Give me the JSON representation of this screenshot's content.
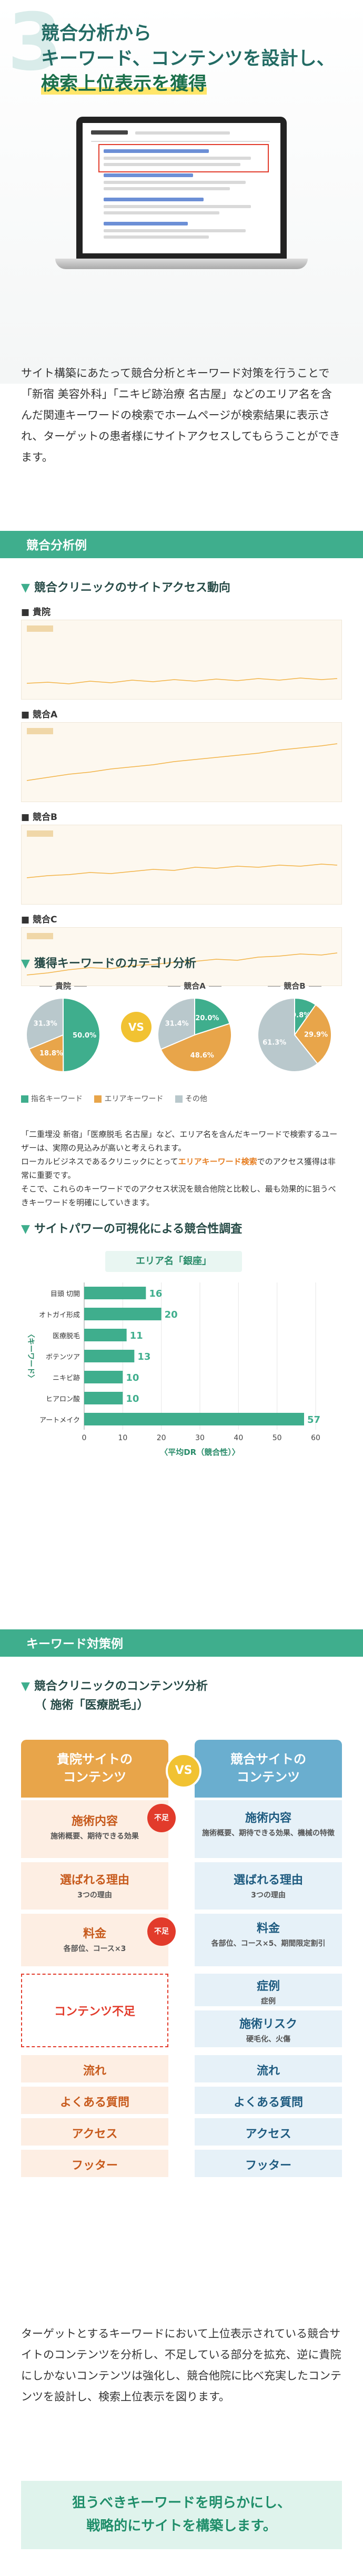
{
  "hero": {
    "number": "3",
    "title_line1": "競合分析から",
    "title_line2": "キーワード、コンテンツを設計し、",
    "title_line3": "検索上位表示を獲得"
  },
  "intro": "サイト構築にあたって競合分析とキーワード対策を行うことで「新宿 美容外科」「ニキビ跡治療 名古屋」などのエリア名を含んだ関連キーワードの検索でホームページが検索結果に表示され、ターゲットの患者様にサイトアクセスしてもらうことができます。",
  "section1": {
    "band": "競合分析例",
    "subhead": "競合クリニックのサイトアクセス動向",
    "graphs": [
      {
        "label": "貴院"
      },
      {
        "label": "競合A"
      },
      {
        "label": "競合B"
      },
      {
        "label": "競合C"
      }
    ]
  },
  "pie_section": {
    "subhead": "獲得キーワードのカテゴリ分析",
    "vs": "VS",
    "pies": [
      {
        "label": "貴院",
        "brand": "50.0%",
        "area": "18.8%",
        "other": "31.3%"
      },
      {
        "label": "競合A",
        "brand": "20.0%",
        "area": "48.6%",
        "other": "31.4%"
      },
      {
        "label": "競合B",
        "brand": "9.8%",
        "area": "29.9%",
        "other": "61.3%"
      }
    ],
    "legend": [
      "指名キーワード",
      "エリアキーワード",
      "その他"
    ],
    "colors": {
      "brand": "#3fae8d",
      "area": "#e8a54a",
      "other": "#b9c8cc"
    }
  },
  "note": {
    "p1": "「二重埋没 新宿」「医療脱毛 名古屋」など、エリア名を含んだキーワードで検索するユーザーは、実際の見込みが高いと考えられます。",
    "p2a": "ローカルビジネスであるクリニックにとって",
    "p2b": "エリアキーワード検索",
    "p2c": "でのアクセス獲得は非常に重要です。",
    "p3": "そこで、これらのキーワードでのアクセス状況を競合他院と比較し、最も効果的に狙うべきキーワードを明確にしていきます。"
  },
  "bar_section": {
    "subhead": "サイトパワーの可視化による競合性調査",
    "area_tag": "エリア名「銀座」",
    "y_axis_label": "〈キーワード〉",
    "x_axis_label": "〈平均DR（競合性）〉"
  },
  "chart_data": {
    "type": "bar",
    "orientation": "horizontal",
    "categories": [
      "目頭 切開",
      "オトガイ形成",
      "医療脱毛",
      "ボテンツア",
      "ニキビ跡",
      "ヒアロン酸",
      "アートメイク"
    ],
    "values": [
      16,
      20,
      11,
      13,
      10,
      10,
      57
    ],
    "xlim": [
      0,
      60
    ],
    "xticks": [
      0,
      10,
      20,
      30,
      40,
      50,
      60
    ],
    "color": "#3fae8d"
  },
  "section2": {
    "band": "キーワード対策例",
    "subhead1": "競合クリニックのコンテンツ分析",
    "subhead2": "（ 施術「医療脱毛」）",
    "left_head": [
      "貴院サイトの",
      "コンテンツ"
    ],
    "right_head": [
      "競合サイトの",
      "コンテンツ"
    ],
    "vs": "VS",
    "fuso": "不足",
    "left": [
      {
        "t": "施術内容",
        "s": "施術概要、期待できる効果"
      },
      {
        "t": "選ばれる理由",
        "s": "3つの理由"
      },
      {
        "t": "料金",
        "s": "各部位、コース×3"
      },
      {
        "t": "コンテンツ不足",
        "s": ""
      },
      {
        "t": "流れ",
        "s": ""
      },
      {
        "t": "よくある質問",
        "s": ""
      },
      {
        "t": "アクセス",
        "s": ""
      },
      {
        "t": "フッター",
        "s": ""
      }
    ],
    "right": [
      {
        "t": "施術内容",
        "s": "施術概要、期待できる効果、機械の特徴"
      },
      {
        "t": "選ばれる理由",
        "s": "3つの理由"
      },
      {
        "t": "料金",
        "s": "各部位、コース×5、期間限定割引"
      },
      {
        "t": "症例",
        "s": "症例"
      },
      {
        "t": "施術リスク",
        "s": "硬毛化、火傷"
      },
      {
        "t": "流れ",
        "s": ""
      },
      {
        "t": "よくある質問",
        "s": ""
      },
      {
        "t": "アクセス",
        "s": ""
      },
      {
        "t": "フッター",
        "s": ""
      }
    ]
  },
  "outro": "ターゲットとするキーワードにおいて上位表示されている競合サイトのコンテンツを分析し、不足している部分を拡充、逆に貴院にしかないコンテンツは強化し、競合他院に比べ充実したコンテンツを設計し、検索上位表示を図ります。",
  "cta": {
    "line1": "狙うべきキーワードを明らかにし、",
    "line2": "戦略的にサイトを構築します。"
  }
}
